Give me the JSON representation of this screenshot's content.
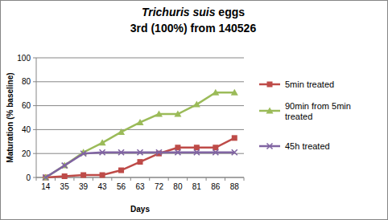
{
  "chart_data": {
    "type": "line",
    "title": "Trichuris suis eggs",
    "subtitle": "3rd (100%) from 140526",
    "x_label": "Days",
    "y_label": "Maturation (% baseline)",
    "categories": [
      "14",
      "35",
      "39",
      "43",
      "56",
      "63",
      "72",
      "80",
      "81",
      "86",
      "88"
    ],
    "series": [
      {
        "name": "5min treated",
        "color": "#be4b48",
        "marker": "square",
        "values": [
          0,
          1,
          2,
          2,
          6,
          13,
          20,
          25,
          25,
          25,
          33
        ]
      },
      {
        "name": "90min from 5min treated",
        "color": "#9bbb59",
        "marker": "triangle",
        "values": [
          0,
          10,
          21,
          29,
          38,
          46,
          53,
          53,
          61,
          71,
          71
        ]
      },
      {
        "name": "45h treated",
        "color": "#8064a2",
        "marker": "x",
        "values": [
          0,
          10,
          20,
          21,
          21,
          21,
          21,
          21,
          21,
          21,
          21
        ]
      }
    ],
    "ylim": [
      0,
      100
    ],
    "yticks": [
      0,
      20,
      40,
      60,
      80,
      100
    ],
    "grid": true,
    "legend": "right"
  }
}
